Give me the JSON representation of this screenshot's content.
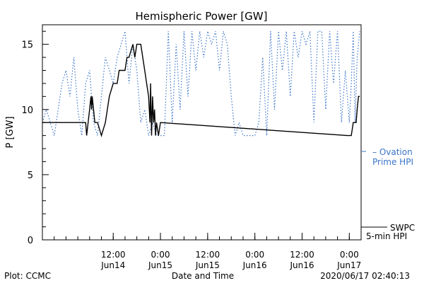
{
  "footer": {
    "left": "Plot: CCMC",
    "center": "Date and Time",
    "right": "2020/06/17 02:40:13"
  },
  "colors": {
    "ovation": "#3a74c8",
    "swpc": "#000000"
  },
  "chart_data": {
    "type": "line",
    "title": "Hemispheric Power [GW]",
    "xlabel": "Date and Time",
    "ylabel": "P [GW]",
    "ylim": [
      0,
      16.5
    ],
    "yticks": [
      0,
      5,
      10,
      15
    ],
    "xlim": [
      "2020-06-13 18:00",
      "2020-06-17 03:00"
    ],
    "xticks": [
      {
        "time": "2020-06-14 12:00",
        "label1": "12:00",
        "label2": "Jun14"
      },
      {
        "time": "2020-06-15 00:00",
        "label1": "0:00",
        "label2": "Jun15"
      },
      {
        "time": "2020-06-15 12:00",
        "label1": "12:00",
        "label2": "Jun15"
      },
      {
        "time": "2020-06-16 00:00",
        "label1": "0:00",
        "label2": "Jun16"
      },
      {
        "time": "2020-06-16 12:00",
        "label1": "12:00",
        "label2": "Jun16"
      },
      {
        "time": "2020-06-17 00:00",
        "label1": "0:00",
        "label2": "Jun17"
      }
    ],
    "grid": false,
    "series": [
      {
        "name": "SWPC 5-min HPI",
        "legend_lines": [
          "SWPC",
          "5-min HPI"
        ],
        "style": "solid",
        "color": "#000000",
        "points": [
          [
            "2020-06-13 18:00",
            9
          ],
          [
            "2020-06-14 05:00",
            9
          ],
          [
            "2020-06-14 05:15",
            8
          ],
          [
            "2020-06-14 06:00",
            10
          ],
          [
            "2020-06-14 06:20",
            11
          ],
          [
            "2020-06-14 06:30",
            10
          ],
          [
            "2020-06-14 06:40",
            11
          ],
          [
            "2020-06-14 07:00",
            10
          ],
          [
            "2020-06-14 07:20",
            9
          ],
          [
            "2020-06-14 08:00",
            9
          ],
          [
            "2020-06-14 09:00",
            8
          ],
          [
            "2020-06-14 10:00",
            9
          ],
          [
            "2020-06-14 10:30",
            10
          ],
          [
            "2020-06-14 11:00",
            11
          ],
          [
            "2020-06-14 12:00",
            12
          ],
          [
            "2020-06-14 13:00",
            12
          ],
          [
            "2020-06-14 13:30",
            13
          ],
          [
            "2020-06-14 15:00",
            13
          ],
          [
            "2020-06-14 15:30",
            14
          ],
          [
            "2020-06-14 16:00",
            14
          ],
          [
            "2020-06-14 17:00",
            15
          ],
          [
            "2020-06-14 17:30",
            14
          ],
          [
            "2020-06-14 18:00",
            15
          ],
          [
            "2020-06-14 19:00",
            15
          ],
          [
            "2020-06-14 19:30",
            14
          ],
          [
            "2020-06-14 20:00",
            13
          ],
          [
            "2020-06-14 20:30",
            12
          ],
          [
            "2020-06-14 21:00",
            11
          ],
          [
            "2020-06-14 21:20",
            9
          ],
          [
            "2020-06-14 21:30",
            12
          ],
          [
            "2020-06-14 21:45",
            8
          ],
          [
            "2020-06-14 22:00",
            11
          ],
          [
            "2020-06-14 22:15",
            9
          ],
          [
            "2020-06-14 22:30",
            10
          ],
          [
            "2020-06-14 22:45",
            8
          ],
          [
            "2020-06-14 23:00",
            9
          ],
          [
            "2020-06-14 23:30",
            8
          ],
          [
            "2020-06-15 00:00",
            9
          ],
          [
            "2020-06-16 23:30",
            8
          ],
          [
            "2020-06-17 00:30",
            8
          ],
          [
            "2020-06-17 01:00",
            9
          ],
          [
            "2020-06-17 01:45",
            9
          ],
          [
            "2020-06-17 02:00",
            10
          ],
          [
            "2020-06-17 02:20",
            11
          ],
          [
            "2020-06-17 02:40",
            11
          ]
        ]
      },
      {
        "name": "Ovation Prime HPI",
        "legend_lines": [
          "– Ovation",
          "Prime HPI"
        ],
        "style": "dotted",
        "color": "#3a74c8",
        "points": [
          [
            "2020-06-13 18:00",
            9
          ],
          [
            "2020-06-13 19:00",
            10
          ],
          [
            "2020-06-13 20:00",
            9
          ],
          [
            "2020-06-13 21:00",
            8
          ],
          [
            "2020-06-13 22:00",
            10
          ],
          [
            "2020-06-13 23:00",
            12
          ],
          [
            "2020-06-14 00:00",
            13
          ],
          [
            "2020-06-14 01:00",
            11
          ],
          [
            "2020-06-14 02:00",
            14
          ],
          [
            "2020-06-14 03:00",
            10
          ],
          [
            "2020-06-14 04:00",
            8
          ],
          [
            "2020-06-14 05:00",
            12
          ],
          [
            "2020-06-14 06:00",
            13
          ],
          [
            "2020-06-14 07:00",
            9
          ],
          [
            "2020-06-14 08:00",
            8
          ],
          [
            "2020-06-14 09:00",
            11
          ],
          [
            "2020-06-14 10:00",
            14
          ],
          [
            "2020-06-14 11:00",
            13
          ],
          [
            "2020-06-14 12:00",
            12
          ],
          [
            "2020-06-14 13:00",
            14
          ],
          [
            "2020-06-14 14:00",
            15
          ],
          [
            "2020-06-14 15:00",
            16
          ],
          [
            "2020-06-14 16:00",
            12
          ],
          [
            "2020-06-14 17:00",
            15
          ],
          [
            "2020-06-14 18:00",
            13
          ],
          [
            "2020-06-14 19:00",
            9
          ],
          [
            "2020-06-14 20:00",
            10
          ],
          [
            "2020-06-14 21:00",
            8
          ],
          [
            "2020-06-14 22:00",
            9
          ],
          [
            "2020-06-14 23:00",
            8
          ],
          [
            "2020-06-15 00:00",
            8
          ],
          [
            "2020-06-15 01:00",
            8
          ],
          [
            "2020-06-15 02:00",
            16
          ],
          [
            "2020-06-15 03:00",
            9
          ],
          [
            "2020-06-15 04:00",
            15
          ],
          [
            "2020-06-15 05:00",
            10
          ],
          [
            "2020-06-15 06:00",
            16
          ],
          [
            "2020-06-15 07:00",
            11
          ],
          [
            "2020-06-15 08:00",
            16
          ],
          [
            "2020-06-15 09:00",
            13
          ],
          [
            "2020-06-15 10:00",
            16
          ],
          [
            "2020-06-15 11:00",
            14
          ],
          [
            "2020-06-15 12:00",
            16
          ],
          [
            "2020-06-15 13:00",
            15
          ],
          [
            "2020-06-15 14:00",
            16
          ],
          [
            "2020-06-15 15:00",
            13
          ],
          [
            "2020-06-15 16:00",
            16
          ],
          [
            "2020-06-15 17:00",
            15
          ],
          [
            "2020-06-15 18:00",
            11
          ],
          [
            "2020-06-15 19:00",
            8
          ],
          [
            "2020-06-15 20:00",
            9
          ],
          [
            "2020-06-15 21:00",
            8
          ],
          [
            "2020-06-15 22:00",
            8
          ],
          [
            "2020-06-16 00:00",
            8
          ],
          [
            "2020-06-16 01:00",
            9
          ],
          [
            "2020-06-16 02:00",
            14
          ],
          [
            "2020-06-16 03:00",
            8
          ],
          [
            "2020-06-16 04:00",
            16
          ],
          [
            "2020-06-16 05:00",
            10
          ],
          [
            "2020-06-16 06:00",
            16
          ],
          [
            "2020-06-16 07:00",
            13
          ],
          [
            "2020-06-16 08:00",
            16
          ],
          [
            "2020-06-16 09:00",
            11
          ],
          [
            "2020-06-16 10:00",
            16
          ],
          [
            "2020-06-16 11:00",
            14
          ],
          [
            "2020-06-16 12:00",
            16
          ],
          [
            "2020-06-16 13:00",
            15
          ],
          [
            "2020-06-16 14:00",
            16
          ],
          [
            "2020-06-16 15:00",
            9
          ],
          [
            "2020-06-16 16:00",
            16
          ],
          [
            "2020-06-16 17:00",
            16
          ],
          [
            "2020-06-16 18:00",
            10
          ],
          [
            "2020-06-16 19:00",
            16
          ],
          [
            "2020-06-16 20:00",
            12
          ],
          [
            "2020-06-16 21:00",
            16
          ],
          [
            "2020-06-16 22:00",
            9
          ],
          [
            "2020-06-16 23:00",
            13
          ],
          [
            "2020-06-17 00:00",
            9
          ],
          [
            "2020-06-17 00:30",
            12
          ],
          [
            "2020-06-17 01:00",
            16
          ],
          [
            "2020-06-17 01:30",
            9
          ],
          [
            "2020-06-17 02:00",
            14
          ],
          [
            "2020-06-17 02:40",
            16
          ]
        ]
      }
    ]
  }
}
